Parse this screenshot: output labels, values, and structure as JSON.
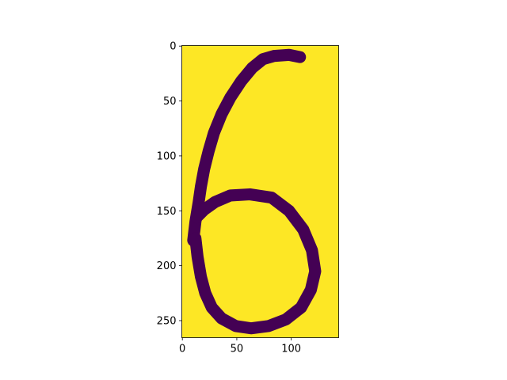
{
  "chart_data": {
    "type": "image",
    "title": "",
    "xlabel": "",
    "ylabel": "",
    "xlim": [
      -0.5,
      143.5
    ],
    "ylim": [
      265.5,
      -0.5
    ],
    "y_axis_inverted": true,
    "image_shape": [
      266,
      144
    ],
    "colormap": "viridis",
    "colors": {
      "background": "#fde725",
      "stroke": "#440154"
    },
    "x_ticks": [
      0,
      50,
      100
    ],
    "y_ticks": [
      0,
      50,
      100,
      150,
      200,
      250
    ],
    "content": "handwritten digit 6",
    "strokes": [
      {
        "name": "upper-stroke",
        "points": [
          [
            108,
            10
          ],
          [
            98,
            8
          ],
          [
            84,
            9
          ],
          [
            74,
            12
          ],
          [
            64,
            20
          ],
          [
            54,
            32
          ],
          [
            44,
            47
          ],
          [
            36,
            62
          ],
          [
            29,
            79
          ],
          [
            24,
            96
          ],
          [
            20,
            112
          ],
          [
            17,
            128
          ],
          [
            15,
            142
          ],
          [
            12,
            160
          ],
          [
            10,
            177
          ]
        ]
      },
      {
        "name": "lower-loop",
        "points": [
          [
            12,
            175
          ],
          [
            14,
            192
          ],
          [
            17,
            210
          ],
          [
            21,
            225
          ],
          [
            27,
            238
          ],
          [
            36,
            248
          ],
          [
            49,
            255
          ],
          [
            63,
            257
          ],
          [
            79,
            255
          ],
          [
            95,
            249
          ],
          [
            109,
            238
          ],
          [
            118,
            222
          ],
          [
            122,
            205
          ],
          [
            119,
            186
          ],
          [
            111,
            167
          ],
          [
            98,
            150
          ],
          [
            82,
            138
          ],
          [
            62,
            135
          ],
          [
            44,
            136
          ],
          [
            30,
            142
          ],
          [
            20,
            149
          ],
          [
            13,
            156
          ]
        ]
      }
    ]
  }
}
